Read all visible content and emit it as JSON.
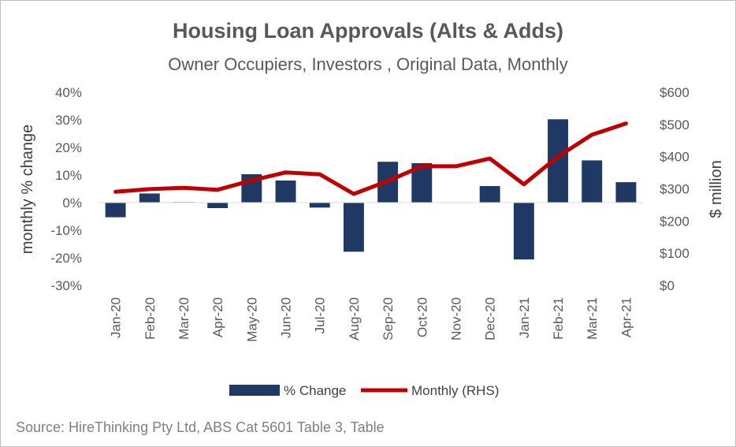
{
  "chart_data": {
    "type": "bar",
    "title": "Housing Loan Approvals (Alts & Adds)",
    "subtitle": "Owner Occupiers, Investors , Original Data, Monthly",
    "categories": [
      "Jan-20",
      "Feb-20",
      "Mar-20",
      "Apr-20",
      "May-20",
      "Jun-20",
      "Jul-20",
      "Aug-20",
      "Sep-20",
      "Oct-20",
      "Nov-20",
      "Dec-20",
      "Jan-21",
      "Feb-21",
      "Mar-21",
      "Apr-21"
    ],
    "series": [
      {
        "name": "% Change",
        "type": "bar",
        "axis": "left",
        "color": "#1f3864",
        "values": [
          -5.3,
          3.3,
          0.2,
          -2.0,
          10.3,
          8.0,
          -1.8,
          -17.8,
          14.8,
          14.3,
          0.0,
          6.0,
          -20.6,
          30.2,
          15.3,
          7.4
        ]
      },
      {
        "name": "Monthly (RHS)",
        "type": "line",
        "axis": "right",
        "color": "#c00000",
        "values": [
          291,
          299,
          303,
          297,
          326,
          351,
          345,
          284,
          324,
          370,
          370,
          394,
          314,
          400,
          468,
          503
        ]
      }
    ],
    "y_left": {
      "label": "monthly % change",
      "ylim": [
        -30,
        40
      ],
      "ticks": [
        40,
        30,
        20,
        10,
        0,
        -10,
        -20,
        -30
      ],
      "tick_labels": [
        "40%",
        "30%",
        "20%",
        "10%",
        "0%",
        "-10%",
        "-20%",
        "-30%"
      ]
    },
    "y_right": {
      "label": "$ million",
      "ylim": [
        0,
        600
      ],
      "ticks": [
        600,
        500,
        400,
        300,
        200,
        100,
        0
      ],
      "tick_labels": [
        "$600",
        "$500",
        "$400",
        "$300",
        "$200",
        "$100",
        "$0"
      ]
    },
    "grid": false,
    "legend_position": "bottom",
    "source": "Source: HireThinking Pty Ltd, ABS Cat 5601 Table 3, Table"
  }
}
